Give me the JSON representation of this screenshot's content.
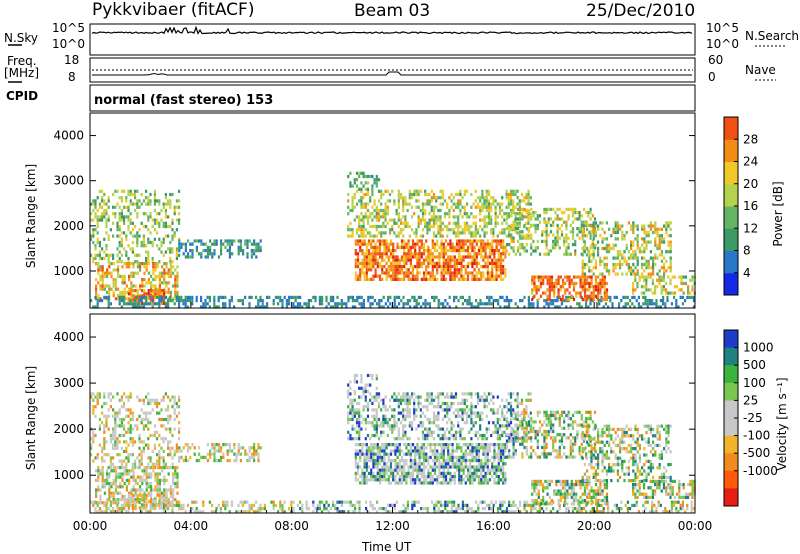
{
  "header": {
    "station": "Pykkvibaer (fitACF)",
    "beam": "Beam 03",
    "date": "25/Dec/2010"
  },
  "strip_nsky": {
    "left_label": "N.Sky",
    "left_ticks": [
      "10^5",
      "10^0"
    ],
    "right_label": "N.Search",
    "right_ticks": [
      "10^5",
      "10^0"
    ]
  },
  "strip_freq": {
    "left_label_1": "Freq.",
    "left_label_2": "[MHz]",
    "left_ticks": [
      "18",
      "8"
    ],
    "right_label": "Nave",
    "right_ticks": [
      "60",
      "0"
    ]
  },
  "cpid": {
    "label": "CPID",
    "mode": "normal (fast stereo) 153"
  },
  "colors": {
    "power_scale": [
      "#1428e6",
      "#2878c8",
      "#3c9a64",
      "#64b464",
      "#b4d24b",
      "#f0c828",
      "#f58c14",
      "#f05014",
      "#e61e14"
    ],
    "velocity_scale": [
      "#e61e14",
      "#ff5a0a",
      "#f08c1e",
      "#f0b428",
      "#c8c8c8",
      "#c8c8c8",
      "#78c850",
      "#3cb43c",
      "#1e8282",
      "#1e3cc8"
    ]
  },
  "chart_data": [
    {
      "type": "heatmap",
      "title": "Power",
      "ylabel": "Slant Range [km]",
      "ylim": [
        180,
        4500
      ],
      "yticks": [
        "1000",
        "2000",
        "3000",
        "4000"
      ],
      "colorbar_label": "Power [dB]",
      "colorbar_ticks": [
        "4",
        "8",
        "12",
        "16",
        "20",
        "24",
        "28"
      ],
      "colorbar_range": [
        0,
        32
      ],
      "grid": false
    },
    {
      "type": "heatmap",
      "title": "Velocity",
      "ylabel": "Slant Range [km]",
      "ylim": [
        180,
        4500
      ],
      "yticks": [
        "1000",
        "2000",
        "3000",
        "4000"
      ],
      "colorbar_label": "Velocity [m s⁻¹]",
      "colorbar_ticks": [
        "1000",
        "500",
        "100",
        "25",
        "-25",
        "-100",
        "-500",
        "-1000"
      ],
      "grid": false
    }
  ],
  "xaxis": {
    "label": "Time UT",
    "ticks": [
      "00:00",
      "04:00",
      "08:00",
      "12:00",
      "16:00",
      "20:00",
      "00:00"
    ]
  }
}
